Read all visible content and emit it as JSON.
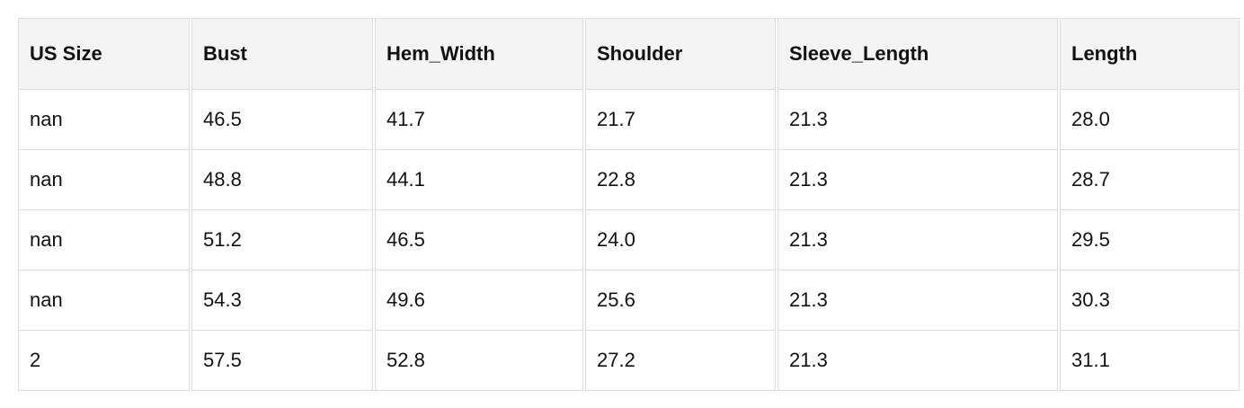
{
  "table": {
    "headers": [
      "US Size",
      "Bust",
      "Hem_Width",
      "Shoulder",
      "Sleeve_Length",
      "Length"
    ],
    "rows": [
      [
        "nan",
        "46.5",
        "41.7",
        "21.7",
        "21.3",
        "28.0"
      ],
      [
        "nan",
        "48.8",
        "44.1",
        "22.8",
        "21.3",
        "28.7"
      ],
      [
        "nan",
        "51.2",
        "46.5",
        "24.0",
        "21.3",
        "29.5"
      ],
      [
        "nan",
        "54.3",
        "49.6",
        "25.6",
        "21.3",
        "30.3"
      ],
      [
        "2",
        "57.5",
        "52.8",
        "27.2",
        "21.3",
        "31.1"
      ]
    ]
  }
}
